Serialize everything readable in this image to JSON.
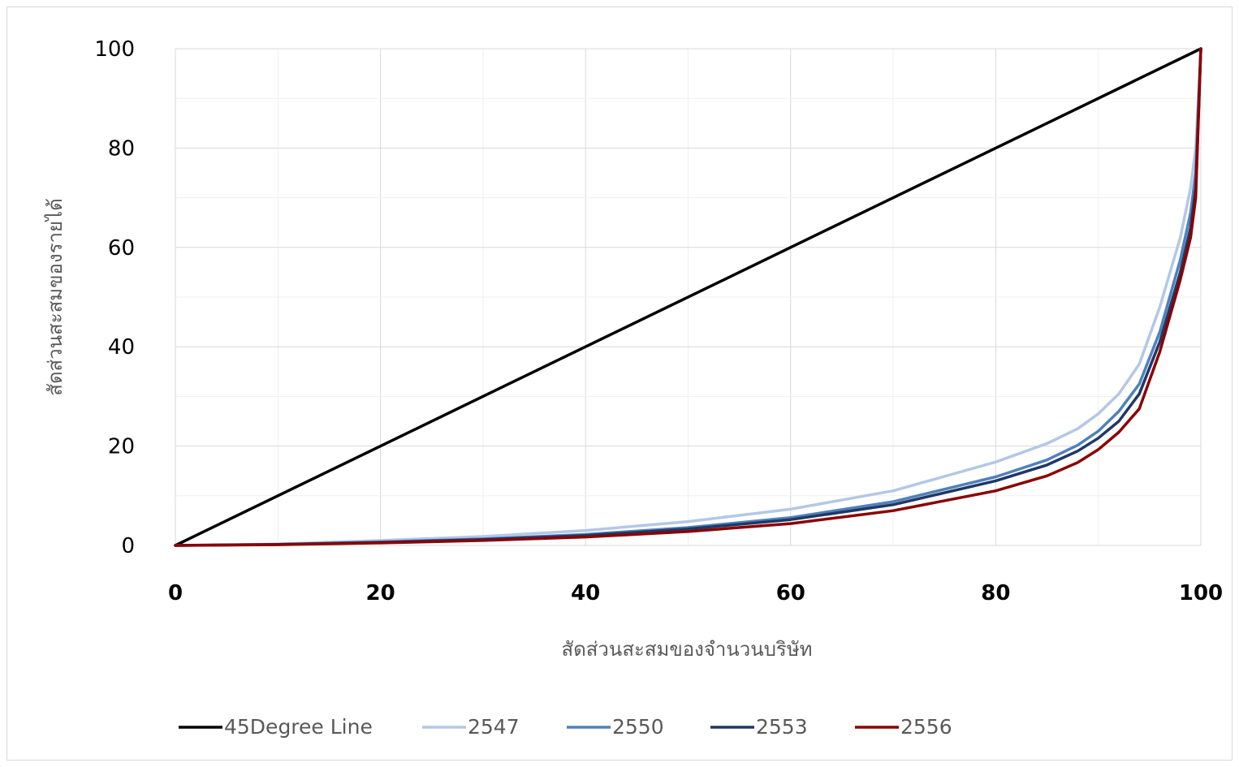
{
  "chart_data": {
    "type": "line",
    "title": "",
    "xlabel": "สัดส่วนสะสมของจำนวนบริษัท",
    "ylabel": "สัดส่วนสะสมของรายได้",
    "xlim": [
      0,
      100
    ],
    "ylim": [
      0,
      100
    ],
    "x_ticks": [
      0,
      20,
      40,
      60,
      80,
      100
    ],
    "y_ticks": [
      0,
      20,
      40,
      60,
      80,
      100
    ],
    "grid": true,
    "legend_position": "bottom",
    "series": [
      {
        "name": "45Degree Line",
        "color": "#000000",
        "x": [
          0,
          100
        ],
        "y": [
          0,
          100
        ]
      },
      {
        "name": "2547",
        "color": "#b4c7e7",
        "x": [
          0,
          10,
          20,
          30,
          40,
          50,
          60,
          70,
          80,
          85,
          88,
          90,
          92,
          94,
          96,
          98,
          99,
          99.5,
          100
        ],
        "y": [
          0,
          0.3,
          1.0,
          1.8,
          3.0,
          4.8,
          7.3,
          11.0,
          16.8,
          20.5,
          23.5,
          26.5,
          30.5,
          36.5,
          48.0,
          62.0,
          72.0,
          80.0,
          100
        ]
      },
      {
        "name": "2550",
        "color": "#4f81bd",
        "x": [
          0,
          10,
          20,
          30,
          40,
          50,
          60,
          70,
          80,
          85,
          88,
          90,
          92,
          94,
          96,
          98,
          99,
          99.5,
          100
        ],
        "y": [
          0,
          0.2,
          0.7,
          1.3,
          2.2,
          3.6,
          5.6,
          8.8,
          13.8,
          17.2,
          20.2,
          23.0,
          27.0,
          32.5,
          43.0,
          57.5,
          67.0,
          75.0,
          100
        ]
      },
      {
        "name": "2553",
        "color": "#203864",
        "x": [
          0,
          10,
          20,
          30,
          40,
          50,
          60,
          70,
          80,
          85,
          88,
          90,
          92,
          94,
          96,
          98,
          99,
          99.5,
          100
        ],
        "y": [
          0,
          0.2,
          0.6,
          1.2,
          2.0,
          3.3,
          5.2,
          8.2,
          13.0,
          16.2,
          19.0,
          21.6,
          25.0,
          30.5,
          41.0,
          55.0,
          64.0,
          72.0,
          100
        ]
      },
      {
        "name": "2556",
        "color": "#8b0000",
        "x": [
          0,
          10,
          20,
          30,
          40,
          50,
          60,
          70,
          80,
          85,
          88,
          90,
          92,
          94,
          96,
          98,
          99,
          99.5,
          100
        ],
        "y": [
          0,
          0.15,
          0.5,
          1.0,
          1.7,
          2.8,
          4.4,
          7.0,
          11.0,
          14.0,
          16.7,
          19.3,
          22.8,
          27.5,
          39.0,
          53.5,
          62.0,
          70.0,
          100
        ]
      }
    ]
  }
}
